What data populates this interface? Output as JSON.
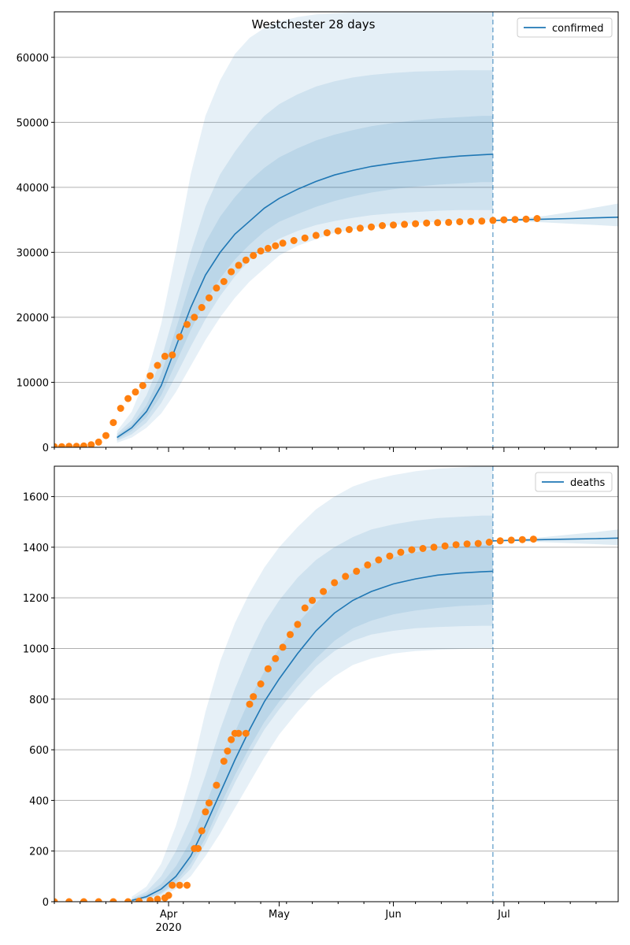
{
  "figure": {
    "title": "Westchester 28 days",
    "x_axis": {
      "tick_labels": [
        "Apr",
        "May",
        "Jun",
        "Jul"
      ],
      "year_label": "2020"
    }
  },
  "chart_data": [
    {
      "type": "line",
      "title": "Westchester 28 days",
      "legend_label": "confirmed",
      "legend_position": "upper right",
      "grid": "y",
      "x_range": [
        "2020-03-01",
        "2020-08-01"
      ],
      "ylim": [
        0,
        67000
      ],
      "y_ticks": [
        0,
        10000,
        20000,
        30000,
        40000,
        50000,
        60000
      ],
      "forecast_start": "2020-06-28",
      "colors": {
        "model": "#1f77b4",
        "observed": "#ff7f0e"
      },
      "model_median": {
        "x": [
          "2020-03-18",
          "2020-03-22",
          "2020-03-26",
          "2020-03-30",
          "2020-04-03",
          "2020-04-07",
          "2020-04-11",
          "2020-04-15",
          "2020-04-19",
          "2020-04-23",
          "2020-04-27",
          "2020-05-01",
          "2020-05-06",
          "2020-05-11",
          "2020-05-16",
          "2020-05-21",
          "2020-05-26",
          "2020-06-01",
          "2020-06-07",
          "2020-06-13",
          "2020-06-19",
          "2020-06-25",
          "2020-06-28"
        ],
        "values": [
          1500,
          3000,
          5500,
          9500,
          15500,
          21500,
          26500,
          30000,
          32800,
          34800,
          36800,
          38300,
          39700,
          40900,
          41900,
          42600,
          43200,
          43700,
          44100,
          44500,
          44800,
          45000,
          45100
        ]
      },
      "model_bands": [
        {
          "name": "outer",
          "x": [
            "2020-03-18",
            "2020-03-22",
            "2020-03-26",
            "2020-03-30",
            "2020-04-03",
            "2020-04-07",
            "2020-04-11",
            "2020-04-15",
            "2020-04-19",
            "2020-04-23",
            "2020-04-27",
            "2020-05-01",
            "2020-05-06",
            "2020-05-11",
            "2020-05-16",
            "2020-05-21",
            "2020-05-26",
            "2020-06-01",
            "2020-06-07",
            "2020-06-13",
            "2020-06-19",
            "2020-06-25",
            "2020-06-28"
          ],
          "upper": [
            2500,
            5500,
            11000,
            19000,
            30000,
            42000,
            51000,
            56500,
            60500,
            63000,
            64500,
            65500,
            66200,
            66600,
            66800,
            66900,
            67000,
            67000,
            67000,
            67000,
            67000,
            67000,
            67000
          ],
          "lower": [
            700,
            1500,
            3000,
            5200,
            8500,
            12500,
            16500,
            20000,
            23000,
            25500,
            27500,
            29500,
            31000,
            32000,
            33000,
            33500,
            33900,
            34200,
            34500,
            34700,
            34900,
            35000,
            35000
          ]
        },
        {
          "name": "middle",
          "x": [
            "2020-03-18",
            "2020-03-22",
            "2020-03-26",
            "2020-03-30",
            "2020-04-03",
            "2020-04-07",
            "2020-04-11",
            "2020-04-15",
            "2020-04-19",
            "2020-04-23",
            "2020-04-27",
            "2020-05-01",
            "2020-05-06",
            "2020-05-11",
            "2020-05-16",
            "2020-05-21",
            "2020-05-26",
            "2020-06-01",
            "2020-06-07",
            "2020-06-13",
            "2020-06-19",
            "2020-06-25",
            "2020-06-28"
          ],
          "upper": [
            2100,
            4200,
            8000,
            13500,
            21500,
            30000,
            37000,
            42000,
            45500,
            48500,
            51000,
            52800,
            54300,
            55500,
            56300,
            56900,
            57300,
            57600,
            57800,
            57900,
            58000,
            58000,
            58000
          ],
          "lower": [
            1000,
            2000,
            3800,
            6800,
            11000,
            15500,
            19700,
            23300,
            26300,
            28800,
            30700,
            32100,
            33300,
            34200,
            34800,
            35300,
            35700,
            36000,
            36200,
            36400,
            36500,
            36500,
            36500
          ]
        },
        {
          "name": "inner",
          "x": [
            "2020-03-18",
            "2020-03-22",
            "2020-03-26",
            "2020-03-30",
            "2020-04-03",
            "2020-04-07",
            "2020-04-11",
            "2020-04-15",
            "2020-04-19",
            "2020-04-23",
            "2020-04-27",
            "2020-05-01",
            "2020-05-06",
            "2020-05-11",
            "2020-05-16",
            "2020-05-21",
            "2020-05-26",
            "2020-06-01",
            "2020-06-07",
            "2020-06-13",
            "2020-06-19",
            "2020-06-25",
            "2020-06-28"
          ],
          "upper": [
            1800,
            3500,
            6500,
            11300,
            18200,
            25500,
            31500,
            35500,
            38500,
            41000,
            43000,
            44600,
            46000,
            47200,
            48100,
            48800,
            49400,
            49900,
            50300,
            50600,
            50800,
            51000,
            51000
          ],
          "lower": [
            1200,
            2500,
            4600,
            8000,
            13000,
            18000,
            22500,
            26000,
            28900,
            31200,
            33200,
            34700,
            35900,
            37000,
            37900,
            38600,
            39200,
            39700,
            40100,
            40400,
            40600,
            40800,
            40800
          ]
        }
      ],
      "forecast": {
        "x": [
          "2020-06-28",
          "2020-07-05",
          "2020-07-12",
          "2020-07-19",
          "2020-07-26",
          "2020-08-01"
        ],
        "median": [
          34900,
          35000,
          35100,
          35200,
          35300,
          35400
        ],
        "upper": [
          34900,
          35200,
          35600,
          36200,
          36900,
          37500
        ],
        "lower": [
          34900,
          34800,
          34600,
          34400,
          34200,
          34000
        ]
      },
      "observed": {
        "x": [
          "2020-03-01",
          "2020-03-03",
          "2020-03-05",
          "2020-03-07",
          "2020-03-09",
          "2020-03-11",
          "2020-03-13",
          "2020-03-15",
          "2020-03-17",
          "2020-03-19",
          "2020-03-21",
          "2020-03-23",
          "2020-03-25",
          "2020-03-27",
          "2020-03-29",
          "2020-03-31",
          "2020-04-02",
          "2020-04-04",
          "2020-04-06",
          "2020-04-08",
          "2020-04-10",
          "2020-04-12",
          "2020-04-14",
          "2020-04-16",
          "2020-04-18",
          "2020-04-20",
          "2020-04-22",
          "2020-04-24",
          "2020-04-26",
          "2020-04-28",
          "2020-04-30",
          "2020-05-02",
          "2020-05-05",
          "2020-05-08",
          "2020-05-11",
          "2020-05-14",
          "2020-05-17",
          "2020-05-20",
          "2020-05-23",
          "2020-05-26",
          "2020-05-29",
          "2020-06-01",
          "2020-06-04",
          "2020-06-07",
          "2020-06-10",
          "2020-06-13",
          "2020-06-16",
          "2020-06-19",
          "2020-06-22",
          "2020-06-25",
          "2020-06-28",
          "2020-07-01",
          "2020-07-04",
          "2020-07-07",
          "2020-07-10"
        ],
        "values": [
          100,
          100,
          150,
          150,
          200,
          400,
          800,
          1800,
          3800,
          6000,
          7500,
          8500,
          9500,
          11000,
          12600,
          14000,
          14200,
          17000,
          18900,
          20000,
          21500,
          23000,
          24500,
          25500,
          27000,
          28000,
          28800,
          29500,
          30200,
          30600,
          31000,
          31400,
          31800,
          32200,
          32600,
          33000,
          33300,
          33500,
          33700,
          33900,
          34100,
          34200,
          34300,
          34400,
          34500,
          34550,
          34600,
          34700,
          34750,
          34800,
          34900,
          35000,
          35050,
          35100,
          35200
        ]
      }
    },
    {
      "type": "line",
      "legend_label": "deaths",
      "legend_position": "upper right",
      "grid": "y",
      "x_range": [
        "2020-03-01",
        "2020-08-01"
      ],
      "ylim": [
        0,
        1720
      ],
      "y_ticks": [
        0,
        200,
        400,
        600,
        800,
        1000,
        1200,
        1400,
        1600
      ],
      "forecast_start": "2020-06-28",
      "colors": {
        "model": "#1f77b4",
        "observed": "#ff7f0e"
      },
      "model_median": {
        "x": [
          "2020-03-22",
          "2020-03-26",
          "2020-03-30",
          "2020-04-03",
          "2020-04-07",
          "2020-04-11",
          "2020-04-15",
          "2020-04-19",
          "2020-04-23",
          "2020-04-27",
          "2020-05-01",
          "2020-05-06",
          "2020-05-11",
          "2020-05-16",
          "2020-05-21",
          "2020-05-26",
          "2020-06-01",
          "2020-06-07",
          "2020-06-13",
          "2020-06-19",
          "2020-06-25",
          "2020-06-28"
        ],
        "values": [
          5,
          20,
          50,
          100,
          180,
          300,
          430,
          560,
          680,
          790,
          880,
          980,
          1070,
          1140,
          1190,
          1225,
          1255,
          1275,
          1290,
          1298,
          1303,
          1305
        ]
      },
      "model_bands": [
        {
          "name": "outer",
          "x": [
            "2020-03-22",
            "2020-03-26",
            "2020-03-30",
            "2020-04-03",
            "2020-04-07",
            "2020-04-11",
            "2020-04-15",
            "2020-04-19",
            "2020-04-23",
            "2020-04-27",
            "2020-05-01",
            "2020-05-06",
            "2020-05-11",
            "2020-05-16",
            "2020-05-21",
            "2020-05-26",
            "2020-06-01",
            "2020-06-07",
            "2020-06-13",
            "2020-06-19",
            "2020-06-25",
            "2020-06-28"
          ],
          "upper": [
            20,
            60,
            150,
            300,
            500,
            750,
            950,
            1100,
            1220,
            1320,
            1400,
            1480,
            1550,
            1600,
            1640,
            1665,
            1685,
            1700,
            1710,
            1715,
            1720,
            1720
          ],
          "lower": [
            0,
            5,
            20,
            50,
            100,
            180,
            270,
            370,
            470,
            570,
            660,
            750,
            830,
            890,
            935,
            960,
            980,
            990,
            995,
            998,
            1000,
            1000
          ]
        },
        {
          "name": "middle",
          "x": [
            "2020-03-22",
            "2020-03-26",
            "2020-03-30",
            "2020-04-03",
            "2020-04-07",
            "2020-04-11",
            "2020-04-15",
            "2020-04-19",
            "2020-04-23",
            "2020-04-27",
            "2020-05-01",
            "2020-05-06",
            "2020-05-11",
            "2020-05-16",
            "2020-05-21",
            "2020-05-26",
            "2020-06-01",
            "2020-06-07",
            "2020-06-13",
            "2020-06-19",
            "2020-06-25",
            "2020-06-28"
          ],
          "upper": [
            12,
            40,
            100,
            200,
            330,
            500,
            680,
            840,
            980,
            1100,
            1190,
            1280,
            1350,
            1400,
            1440,
            1470,
            1490,
            1505,
            1515,
            1520,
            1525,
            1525
          ],
          "lower": [
            1,
            10,
            30,
            70,
            130,
            230,
            350,
            470,
            580,
            680,
            760,
            850,
            930,
            990,
            1030,
            1055,
            1070,
            1080,
            1085,
            1088,
            1090,
            1090
          ]
        },
        {
          "name": "inner",
          "x": [
            "2020-03-22",
            "2020-03-26",
            "2020-03-30",
            "2020-04-03",
            "2020-04-07",
            "2020-04-11",
            "2020-04-15",
            "2020-04-19",
            "2020-04-23",
            "2020-04-27",
            "2020-05-01",
            "2020-05-06",
            "2020-05-11",
            "2020-05-16",
            "2020-05-21",
            "2020-05-26",
            "2020-06-01",
            "2020-06-07",
            "2020-06-13",
            "2020-06-19",
            "2020-06-25",
            "2020-06-28"
          ],
          "upper": [
            8,
            30,
            70,
            140,
            240,
            380,
            530,
            670,
            800,
            910,
            1000,
            1100,
            1180,
            1250,
            1300,
            1335,
            1360,
            1380,
            1395,
            1403,
            1408,
            1410
          ],
          "lower": [
            2,
            12,
            35,
            80,
            150,
            250,
            380,
            500,
            610,
            710,
            790,
            880,
            960,
            1030,
            1080,
            1110,
            1135,
            1150,
            1160,
            1168,
            1172,
            1175
          ]
        }
      ],
      "forecast": {
        "x": [
          "2020-06-28",
          "2020-07-05",
          "2020-07-12",
          "2020-07-19",
          "2020-07-26",
          "2020-08-01"
        ],
        "median": [
          1425,
          1428,
          1430,
          1432,
          1434,
          1436
        ],
        "upper": [
          1425,
          1432,
          1440,
          1450,
          1460,
          1470
        ],
        "lower": [
          1425,
          1424,
          1420,
          1416,
          1412,
          1408
        ]
      },
      "observed": {
        "x": [
          "2020-03-01",
          "2020-03-05",
          "2020-03-09",
          "2020-03-13",
          "2020-03-17",
          "2020-03-21",
          "2020-03-24",
          "2020-03-27",
          "2020-03-29",
          "2020-03-31",
          "2020-04-01",
          "2020-04-02",
          "2020-04-04",
          "2020-04-06",
          "2020-04-08",
          "2020-04-09",
          "2020-04-10",
          "2020-04-11",
          "2020-04-12",
          "2020-04-14",
          "2020-04-16",
          "2020-04-17",
          "2020-04-18",
          "2020-04-19",
          "2020-04-20",
          "2020-04-22",
          "2020-04-23",
          "2020-04-24",
          "2020-04-26",
          "2020-04-28",
          "2020-04-30",
          "2020-05-02",
          "2020-05-04",
          "2020-05-06",
          "2020-05-08",
          "2020-05-10",
          "2020-05-13",
          "2020-05-16",
          "2020-05-19",
          "2020-05-22",
          "2020-05-25",
          "2020-05-28",
          "2020-05-31",
          "2020-06-03",
          "2020-06-06",
          "2020-06-09",
          "2020-06-12",
          "2020-06-15",
          "2020-06-18",
          "2020-06-21",
          "2020-06-24",
          "2020-06-27",
          "2020-06-30",
          "2020-07-03",
          "2020-07-06",
          "2020-07-09"
        ],
        "values": [
          0,
          0,
          0,
          0,
          0,
          0,
          2,
          5,
          10,
          15,
          25,
          65,
          65,
          65,
          210,
          210,
          280,
          355,
          390,
          460,
          555,
          595,
          640,
          665,
          665,
          665,
          780,
          810,
          860,
          920,
          960,
          1005,
          1055,
          1095,
          1160,
          1190,
          1225,
          1260,
          1285,
          1305,
          1330,
          1350,
          1365,
          1380,
          1390,
          1395,
          1400,
          1405,
          1410,
          1413,
          1415,
          1420,
          1425,
          1428,
          1430,
          1432
        ]
      }
    }
  ]
}
